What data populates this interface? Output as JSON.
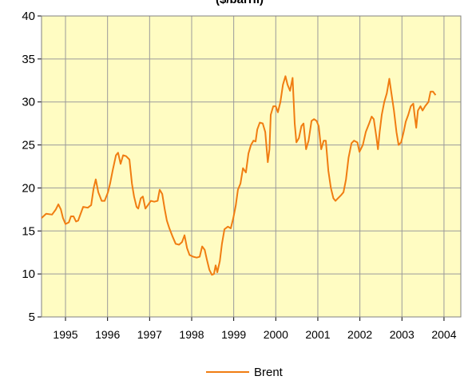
{
  "chart_data": {
    "type": "line",
    "title": "($/barril)",
    "x": [
      1994.43,
      1994.54,
      1994.68,
      1994.77,
      1994.83,
      1994.89,
      1994.94,
      1995.0,
      1995.08,
      1995.13,
      1995.19,
      1995.25,
      1995.3,
      1995.36,
      1995.42,
      1995.53,
      1995.61,
      1995.67,
      1995.72,
      1995.78,
      1995.86,
      1995.93,
      1996.01,
      1996.06,
      1996.12,
      1996.2,
      1996.25,
      1996.31,
      1996.37,
      1996.44,
      1996.52,
      1996.58,
      1996.63,
      1996.69,
      1996.73,
      1996.79,
      1996.84,
      1996.9,
      1996.96,
      1997.03,
      1997.11,
      1997.19,
      1997.24,
      1997.3,
      1997.36,
      1997.41,
      1997.47,
      1997.55,
      1997.62,
      1997.7,
      1997.77,
      1997.83,
      1997.89,
      1997.95,
      1998.04,
      1998.12,
      1998.19,
      1998.25,
      1998.31,
      1998.36,
      1998.42,
      1998.48,
      1998.53,
      1998.57,
      1998.61,
      1998.67,
      1998.72,
      1998.78,
      1998.86,
      1998.93,
      1998.99,
      1999.05,
      1999.1,
      1999.16,
      1999.22,
      1999.29,
      1999.35,
      1999.41,
      1999.47,
      1999.52,
      1999.56,
      1999.62,
      1999.69,
      1999.75,
      1999.81,
      1999.85,
      1999.88,
      1999.94,
      2000.0,
      2000.05,
      2000.11,
      2000.17,
      2000.23,
      2000.28,
      2000.34,
      2000.4,
      2000.45,
      2000.49,
      2000.55,
      2000.61,
      2000.66,
      2000.72,
      2000.78,
      2000.85,
      2000.91,
      2000.97,
      2001.02,
      2001.08,
      2001.14,
      2001.19,
      2001.25,
      2001.31,
      2001.37,
      2001.42,
      2001.48,
      2001.56,
      2001.61,
      2001.67,
      2001.73,
      2001.8,
      2001.86,
      2001.94,
      2001.99,
      2002.07,
      2002.14,
      2002.22,
      2002.28,
      2002.33,
      2002.39,
      2002.43,
      2002.47,
      2002.52,
      2002.58,
      2002.64,
      2002.7,
      2002.75,
      2002.81,
      2002.87,
      2002.92,
      2002.98,
      2003.04,
      2003.09,
      2003.15,
      2003.21,
      2003.27,
      2003.3,
      2003.34,
      2003.38,
      2003.44,
      2003.49,
      2003.55,
      2003.63,
      2003.68,
      2003.74,
      2003.8
    ],
    "series": [
      {
        "name": "Brent",
        "color": "#f07d12",
        "values": [
          16.5,
          17.0,
          16.9,
          17.5,
          18.1,
          17.5,
          16.5,
          15.8,
          16.0,
          16.7,
          16.7,
          16.1,
          16.2,
          17.0,
          17.8,
          17.7,
          18.0,
          20.0,
          21.0,
          19.5,
          18.5,
          18.5,
          19.5,
          20.5,
          22.0,
          23.8,
          24.1,
          22.8,
          23.8,
          23.7,
          23.3,
          20.5,
          19.0,
          17.8,
          17.6,
          18.8,
          19.0,
          17.6,
          18.0,
          18.5,
          18.4,
          18.5,
          19.8,
          19.3,
          17.5,
          16.2,
          15.3,
          14.3,
          13.5,
          13.4,
          13.7,
          14.5,
          13.0,
          12.2,
          12.0,
          11.9,
          12.0,
          13.2,
          12.8,
          11.7,
          10.5,
          9.9,
          10.0,
          11.0,
          10.2,
          11.5,
          13.5,
          15.2,
          15.5,
          15.3,
          16.5,
          18.0,
          19.8,
          20.5,
          22.3,
          21.8,
          24.0,
          25.0,
          25.5,
          25.4,
          26.8,
          27.6,
          27.5,
          26.5,
          23.0,
          24.5,
          28.5,
          29.5,
          29.5,
          28.8,
          30.0,
          32.0,
          33.0,
          32.0,
          31.3,
          32.8,
          27.5,
          25.3,
          25.8,
          27.2,
          27.5,
          24.5,
          25.5,
          27.8,
          28.0,
          27.8,
          27.2,
          24.5,
          25.5,
          25.5,
          22.0,
          20.0,
          18.8,
          18.5,
          18.8,
          19.2,
          19.5,
          21.0,
          23.5,
          25.2,
          25.5,
          25.3,
          24.2,
          25.0,
          26.5,
          27.5,
          28.3,
          28.0,
          26.0,
          24.5,
          26.5,
          28.5,
          30.0,
          31.0,
          32.7,
          31.0,
          29.0,
          26.5,
          25.0,
          25.3,
          26.5,
          27.7,
          28.5,
          29.5,
          29.8,
          28.5,
          27.0,
          29.0,
          29.5,
          29.0,
          29.5,
          30.0,
          31.2,
          31.2,
          30.8
        ]
      }
    ],
    "xlim": [
      1994.43,
      2004.4
    ],
    "xticks": [
      1995,
      1996,
      1997,
      1998,
      1999,
      2000,
      2001,
      2002,
      2003,
      2004
    ],
    "ylim": [
      5,
      40
    ],
    "yticks": [
      5,
      10,
      15,
      20,
      25,
      30,
      35,
      40
    ],
    "grid": true,
    "legend": "bottom",
    "plot_background": "#fffcc2"
  }
}
